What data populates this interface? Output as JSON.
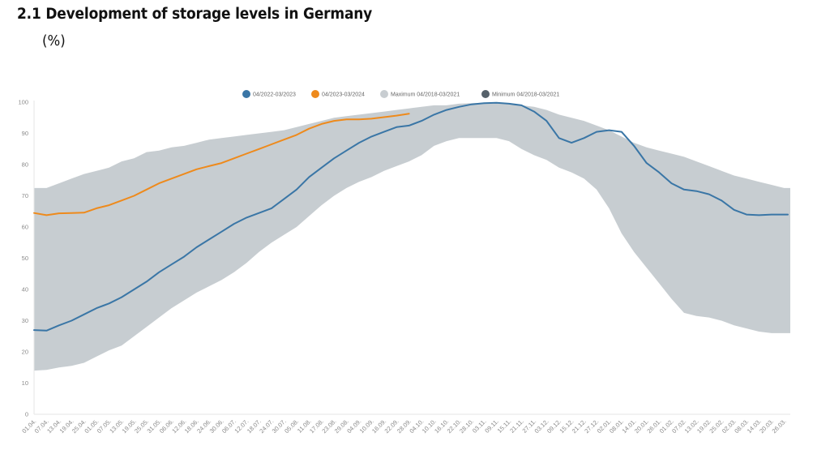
{
  "header": {
    "title": "2.1 Development of storage levels in Germany",
    "unit": "(%)"
  },
  "chart_data": {
    "type": "line",
    "title": "2.1 Development of storage levels in Germany",
    "subtitle": "(%)",
    "xlabel": "",
    "ylabel": "%",
    "ylim": [
      0,
      100
    ],
    "yticks": [
      0,
      10,
      20,
      30,
      40,
      50,
      60,
      70,
      80,
      90,
      100
    ],
    "grid": false,
    "legend_position": "top-center",
    "x": [
      "01.04.",
      "07.04.",
      "13.04.",
      "19.04.",
      "25.04.",
      "01.05.",
      "07.05.",
      "13.05.",
      "19.05.",
      "25.05.",
      "31.05.",
      "06.06.",
      "12.06.",
      "18.06.",
      "24.06.",
      "30.06.",
      "06.07.",
      "12.07.",
      "18.07.",
      "24.07.",
      "30.07.",
      "05.08.",
      "11.08.",
      "17.08.",
      "23.08.",
      "29.08.",
      "04.09.",
      "10.09.",
      "16.09.",
      "22.09.",
      "28.09.",
      "04.10.",
      "10.10.",
      "16.10.",
      "22.10.",
      "28.10.",
      "03.11.",
      "09.11.",
      "15.11.",
      "21.11.",
      "27.11.",
      "03.12.",
      "09.12.",
      "15.12.",
      "21.12.",
      "27.12.",
      "02.01.",
      "08.01.",
      "14.01.",
      "20.01.",
      "26.01.",
      "01.02.",
      "07.02.",
      "13.02.",
      "19.02.",
      "25.02.",
      "02.03.",
      "08.03.",
      "14.03.",
      "20.03.",
      "26.03."
    ],
    "band": {
      "name_max": "Maximum 04/2018-03/2021",
      "name_min": "Minimum 04/2018-03/2021",
      "color_max": "#c8cdd1",
      "color_min": "#56616a",
      "fill": "#c7cdd1",
      "max": [
        72.5,
        72.5,
        74,
        75.5,
        77,
        78,
        79,
        81,
        82,
        84,
        84.5,
        85.5,
        86,
        87,
        88,
        88.5,
        89,
        89.5,
        90,
        90.5,
        91,
        92,
        93,
        94,
        95,
        95.5,
        96,
        96.5,
        97,
        97.5,
        98,
        98.5,
        99,
        99,
        99.5,
        99.7,
        99.8,
        99.8,
        99.5,
        99,
        98.5,
        97.5,
        96,
        95,
        94,
        92.5,
        91,
        89,
        87,
        85.5,
        84.5,
        83.5,
        82.5,
        81,
        79.5,
        78,
        76.5,
        75.5,
        74.5,
        73.5,
        72.5
      ],
      "min": [
        14,
        14.2,
        15,
        15.5,
        16.5,
        18.5,
        20.5,
        22,
        25,
        28,
        31,
        34,
        36.5,
        39,
        41,
        43,
        45.5,
        48.5,
        52,
        55,
        57.5,
        60,
        63.5,
        67,
        70,
        72.5,
        74.5,
        76,
        78,
        79.5,
        81,
        83,
        86,
        87.5,
        88.5,
        88.5,
        88.5,
        88.5,
        87.5,
        85,
        83,
        81.5,
        79,
        77.5,
        75.5,
        72,
        66,
        58,
        52,
        47,
        42,
        37,
        32.5,
        31.5,
        31,
        30,
        28.5,
        27.5,
        26.5,
        26,
        26
      ]
    },
    "series": [
      {
        "name": "04/2022-03/2023",
        "color": "#3a76a6",
        "values": [
          27,
          26.8,
          28.5,
          30,
          32,
          34,
          35.5,
          37.5,
          40,
          42.5,
          45.5,
          48,
          50.5,
          53.5,
          56,
          58.5,
          61,
          63,
          64.5,
          66,
          69,
          72,
          76,
          79,
          82,
          84.5,
          87,
          89,
          90.5,
          92,
          92.5,
          94,
          96,
          97.5,
          98.5,
          99.3,
          99.7,
          99.8,
          99.5,
          99,
          97,
          94,
          88.5,
          87,
          88.5,
          90.5,
          91,
          90.5,
          86,
          80.5,
          77.5,
          74,
          72,
          71.5,
          70.5,
          68.5,
          65.5,
          64,
          63.8,
          64,
          64
        ]
      },
      {
        "name": "04/2023-03/2024",
        "color": "#ee8a1c",
        "values": [
          64.5,
          63.8,
          64.4,
          64.5,
          64.6,
          66,
          67,
          68.5,
          70,
          72,
          74,
          75.5,
          77,
          78.5,
          79.5,
          80.5,
          82,
          83.5,
          85,
          86.5,
          88,
          89.5,
          91.5,
          93,
          94,
          94.5,
          94.5,
          94.7,
          95.2,
          95.7,
          96.3,
          null,
          null,
          null,
          null,
          null,
          null,
          null,
          null,
          null,
          null,
          null,
          null,
          null,
          null,
          null,
          null,
          null,
          null,
          null,
          null,
          null,
          null,
          null,
          null,
          null,
          null,
          null,
          null,
          null,
          null
        ]
      }
    ],
    "legend": [
      {
        "label": "04/2022-03/2023",
        "color": "#3a76a6"
      },
      {
        "label": "04/2023-03/2024",
        "color": "#ee8a1c"
      },
      {
        "label": "Maximum 04/2018-03/2021",
        "color": "#c8cdd1"
      },
      {
        "label": "Minimum 04/2018-03/2021",
        "color": "#56616a"
      }
    ]
  }
}
